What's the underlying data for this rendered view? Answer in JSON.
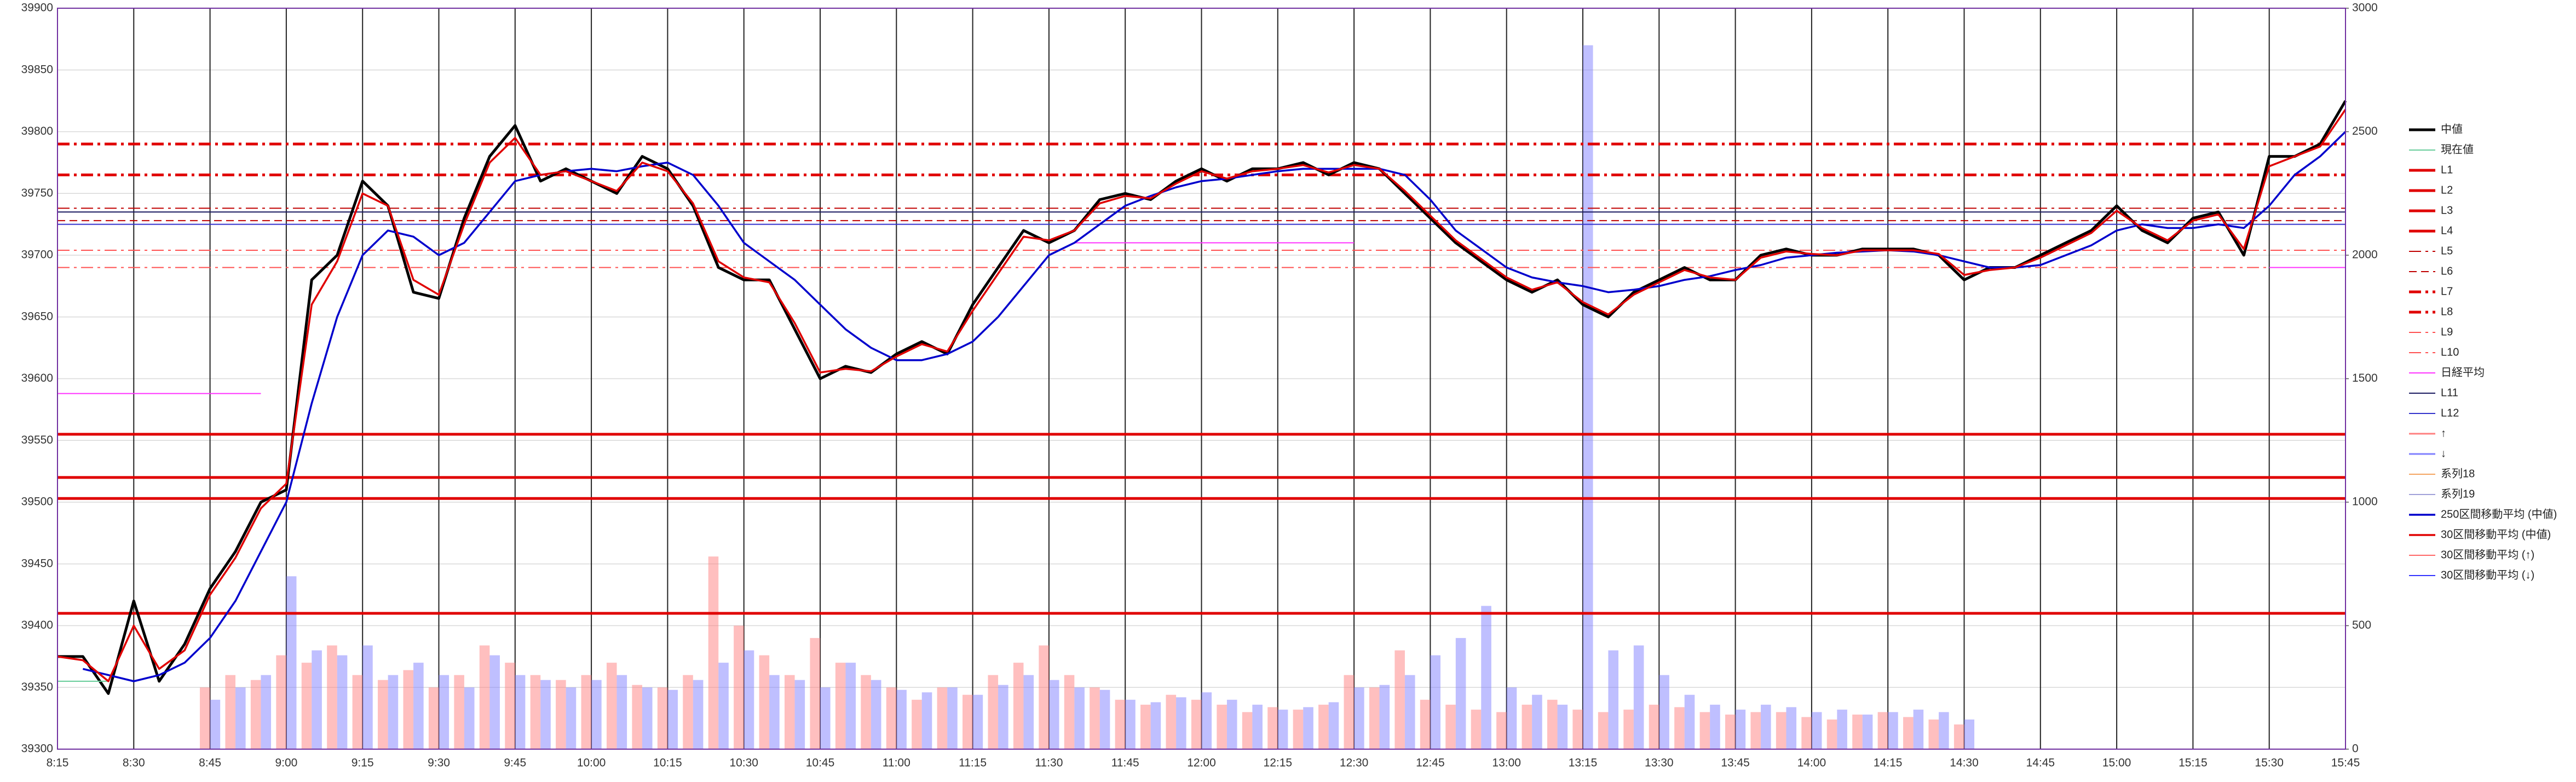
{
  "chart_data": {
    "type": "line",
    "categories": [
      "8:15",
      null,
      null,
      "8:30",
      null,
      null,
      "8:45",
      null,
      null,
      "9:00",
      null,
      null,
      "9:15",
      null,
      null,
      "9:30",
      null,
      null,
      "9:45",
      null,
      null,
      "10:00",
      null,
      null,
      "10:15",
      null,
      null,
      "10:30",
      null,
      null,
      "10:45",
      null,
      null,
      "11:00",
      null,
      null,
      "11:15",
      null,
      null,
      "11:30",
      null,
      null,
      "11:45",
      null,
      null,
      "12:00",
      null,
      null,
      "12:15",
      null,
      null,
      "12:30",
      null,
      null,
      "12:45",
      null,
      null,
      "13:00",
      null,
      null,
      "13:15",
      null,
      null,
      "13:30",
      null,
      null,
      "13:45",
      null,
      null,
      "14:00",
      null,
      null,
      "14:15",
      null,
      null,
      "14:30",
      null,
      null,
      "14:45",
      null,
      null,
      "15:00",
      null,
      null,
      "15:15",
      null,
      null,
      "15:30",
      null,
      null,
      "15:45"
    ],
    "ylim": [
      39300,
      39900
    ],
    "yticks": [
      39300,
      39350,
      39400,
      39450,
      39500,
      39550,
      39600,
      39650,
      39700,
      39750,
      39800,
      39850,
      39900
    ],
    "y2lim": [
      0,
      3000
    ],
    "y2ticks": [
      0,
      500,
      1000,
      1500,
      2000,
      2500,
      3000
    ],
    "grid": true,
    "series": [
      {
        "name": "中値",
        "kind": "line",
        "color": "#000000",
        "weight": "heavy",
        "values": [
          39375,
          39375,
          39345,
          39420,
          39355,
          39385,
          39430,
          39460,
          39500,
          39510,
          39680,
          39700,
          39760,
          39740,
          39670,
          39665,
          39730,
          39780,
          39805,
          39760,
          39770,
          39760,
          39750,
          39780,
          39770,
          39740,
          39690,
          39680,
          39680,
          39640,
          39600,
          39610,
          39605,
          39620,
          39630,
          39620,
          39660,
          39690,
          39720,
          39710,
          39720,
          39745,
          39750,
          39745,
          39760,
          39770,
          39760,
          39770,
          39770,
          39775,
          39765,
          39775,
          39770,
          39750,
          39730,
          39710,
          39695,
          39680,
          39670,
          39680,
          39660,
          39650,
          39670,
          39680,
          39690,
          39680,
          39680,
          39700,
          39705,
          39700,
          39700,
          39705,
          39705,
          39705,
          39700,
          39680,
          39690,
          39690,
          39700,
          39710,
          39720,
          39740,
          39720,
          39710,
          39730,
          39735,
          39700,
          39780,
          39780,
          39790,
          39825
        ]
      },
      {
        "name": "現在値",
        "kind": "line",
        "color": "#66cc99",
        "weight": "light",
        "values": [
          39355,
          39355,
          39355,
          null,
          null,
          null,
          null,
          null,
          null,
          null,
          null,
          null,
          null,
          null,
          null,
          null,
          null,
          null,
          null,
          null,
          null,
          null,
          null,
          null,
          null,
          null,
          null,
          null,
          null,
          null,
          null,
          null,
          null,
          null,
          null,
          null,
          null,
          null,
          null,
          null,
          null,
          null,
          null,
          null,
          null,
          null,
          null,
          null,
          null,
          null,
          null,
          null,
          null,
          null,
          null,
          null,
          null,
          null,
          null,
          null,
          null,
          null,
          null,
          null,
          null,
          null,
          null,
          null,
          null,
          null,
          null,
          null,
          null,
          null,
          null,
          null,
          null,
          null,
          null,
          null,
          null,
          null,
          null,
          null,
          null,
          null,
          null,
          null,
          null,
          null,
          null
        ]
      },
      {
        "name": "L1",
        "kind": "hline",
        "color": "#e00000",
        "dash": "solid",
        "weight": "heavy",
        "value": 39555
      },
      {
        "name": "L2",
        "kind": "hline",
        "color": "#e00000",
        "dash": "solid",
        "weight": "heavy",
        "value": 39520
      },
      {
        "name": "L3",
        "kind": "hline",
        "color": "#e00000",
        "dash": "solid",
        "weight": "heavy",
        "value": 39503
      },
      {
        "name": "L4",
        "kind": "hline",
        "color": "#e00000",
        "dash": "solid",
        "weight": "heavy",
        "value": 39410
      },
      {
        "name": "L5",
        "kind": "hline",
        "color": "#c00000",
        "dash": "dashdot",
        "weight": "light",
        "value": 39738
      },
      {
        "name": "L6",
        "kind": "hline",
        "color": "#c00000",
        "dash": "dash",
        "weight": "light",
        "value": 39728
      },
      {
        "name": "L7",
        "kind": "hline",
        "color": "#e00000",
        "dash": "dashdot",
        "weight": "heavy",
        "value": 39790
      },
      {
        "name": "L8",
        "kind": "hline",
        "color": "#e00000",
        "dash": "dashdot",
        "weight": "heavy",
        "value": 39765
      },
      {
        "name": "L9",
        "kind": "hline",
        "color": "#ff5050",
        "dash": "dashdot",
        "weight": "light",
        "value": 39704
      },
      {
        "name": "L10",
        "kind": "hline",
        "color": "#ff5050",
        "dash": "dashdot",
        "weight": "light",
        "value": 39690
      },
      {
        "name": "日経平均",
        "kind": "line",
        "color": "#ff33ff",
        "weight": "light",
        "values": [
          39588,
          39588,
          39588,
          39588,
          39588,
          39588,
          39588,
          39588,
          39588,
          null,
          null,
          null,
          null,
          null,
          null,
          null,
          null,
          null,
          null,
          null,
          null,
          null,
          null,
          null,
          null,
          null,
          null,
          null,
          null,
          null,
          null,
          null,
          null,
          null,
          null,
          null,
          null,
          null,
          null,
          null,
          39710,
          39710,
          39710,
          39710,
          39710,
          39710,
          39710,
          39710,
          39710,
          39710,
          39710,
          39710,
          null,
          null,
          null,
          null,
          null,
          null,
          null,
          null,
          null,
          null,
          null,
          null,
          null,
          null,
          null,
          null,
          null,
          null,
          null,
          null,
          null,
          null,
          null,
          null,
          null,
          null,
          null,
          null,
          null,
          null,
          null,
          null,
          null,
          null,
          null,
          39690,
          39690,
          39690,
          39690
        ]
      },
      {
        "name": "L11",
        "kind": "hline",
        "color": "#1a1a60",
        "dash": "solid",
        "weight": "light",
        "value": 39735
      },
      {
        "name": "L12",
        "kind": "hline",
        "color": "#3333cc",
        "dash": "solid",
        "weight": "light",
        "value": 39725
      },
      {
        "name": "↑",
        "kind": "bar",
        "axis": "y2",
        "color": "#ff8080",
        "values": [
          null,
          null,
          null,
          null,
          null,
          null,
          250,
          300,
          280,
          380,
          350,
          420,
          300,
          280,
          320,
          250,
          300,
          420,
          350,
          300,
          280,
          300,
          350,
          260,
          250,
          300,
          780,
          500,
          380,
          300,
          450,
          350,
          300,
          250,
          200,
          250,
          220,
          300,
          350,
          420,
          300,
          250,
          200,
          180,
          220,
          200,
          180,
          150,
          170,
          160,
          180,
          300,
          250,
          400,
          200,
          180,
          160,
          150,
          180,
          200,
          160,
          150,
          160,
          180,
          170,
          150,
          140,
          150,
          150,
          130,
          120,
          140,
          150,
          130,
          120,
          100,
          null,
          null,
          null,
          null,
          null,
          null,
          null,
          null,
          null,
          null,
          null,
          null,
          null,
          null,
          null
        ]
      },
      {
        "name": "↓",
        "kind": "bar",
        "axis": "y2",
        "color": "#8080ff",
        "values": [
          null,
          null,
          null,
          null,
          null,
          null,
          200,
          250,
          300,
          700,
          400,
          380,
          420,
          300,
          350,
          300,
          250,
          380,
          300,
          280,
          250,
          280,
          300,
          250,
          240,
          280,
          350,
          400,
          300,
          280,
          250,
          350,
          280,
          240,
          230,
          250,
          220,
          260,
          300,
          280,
          250,
          240,
          200,
          190,
          210,
          230,
          200,
          180,
          160,
          170,
          190,
          250,
          260,
          300,
          380,
          450,
          580,
          250,
          220,
          180,
          2850,
          400,
          420,
          300,
          220,
          180,
          160,
          180,
          170,
          150,
          160,
          140,
          150,
          160,
          150,
          120,
          null,
          null,
          null,
          null,
          null,
          null,
          null,
          null,
          null,
          null,
          null,
          null,
          null,
          null,
          null
        ]
      },
      {
        "name": "系列18",
        "kind": "line",
        "color": "#f4a460",
        "weight": "light"
      },
      {
        "name": "系列19",
        "kind": "line",
        "color": "#a0a0d8",
        "weight": "light"
      },
      {
        "name": "250区間移動平均 (中値)",
        "kind": "line",
        "color": "#0000cc",
        "weight": "medium",
        "values": [
          null,
          39365,
          39360,
          39355,
          39360,
          39370,
          39390,
          39420,
          39460,
          39500,
          39580,
          39650,
          39700,
          39720,
          39715,
          39700,
          39710,
          39735,
          39760,
          39765,
          39768,
          39770,
          39768,
          39772,
          39775,
          39765,
          39740,
          39710,
          39695,
          39680,
          39660,
          39640,
          39625,
          39615,
          39615,
          39620,
          39630,
          39650,
          39675,
          39700,
          39710,
          39725,
          39740,
          39748,
          39755,
          39760,
          39762,
          39765,
          39768,
          39770,
          39770,
          39770,
          39770,
          39765,
          39745,
          39720,
          39705,
          39690,
          39682,
          39678,
          39675,
          39670,
          39672,
          39675,
          39680,
          39683,
          39688,
          39692,
          39698,
          39700,
          39702,
          39703,
          39704,
          39703,
          39700,
          39695,
          39690,
          39690,
          39692,
          39700,
          39708,
          39720,
          39725,
          39722,
          39722,
          39725,
          39722,
          39740,
          39765,
          39780,
          39800
        ]
      },
      {
        "name": "30区間移動平均 (中値)",
        "kind": "line",
        "color": "#e00000",
        "weight": "medium",
        "values": [
          39375,
          39372,
          39355,
          39400,
          39365,
          39380,
          39425,
          39455,
          39495,
          39515,
          39660,
          39695,
          39750,
          39740,
          39680,
          39668,
          39725,
          39775,
          39795,
          39765,
          39768,
          39760,
          39752,
          39775,
          39768,
          39742,
          39695,
          39682,
          39678,
          39645,
          39605,
          39608,
          39606,
          39618,
          39628,
          39622,
          39655,
          39685,
          39715,
          39712,
          39720,
          39742,
          39748,
          39746,
          39758,
          39768,
          39762,
          39768,
          39770,
          39773,
          39767,
          39773,
          39770,
          39752,
          39732,
          39712,
          39697,
          39682,
          39672,
          39678,
          39662,
          39652,
          39668,
          39678,
          39688,
          39682,
          39680,
          39698,
          39703,
          39701,
          39700,
          39704,
          39704,
          39704,
          39701,
          39684,
          39688,
          39690,
          39698,
          39708,
          39718,
          39736,
          39722,
          39712,
          39728,
          39733,
          39705,
          39772,
          39780,
          39788,
          39818
        ]
      },
      {
        "name": "30区間移動平均 (↑)",
        "kind": "line",
        "color": "#ff6666",
        "weight": "light"
      },
      {
        "name": "30区間移動平均 (↓)",
        "kind": "line",
        "color": "#3333ff",
        "weight": "light"
      }
    ]
  }
}
